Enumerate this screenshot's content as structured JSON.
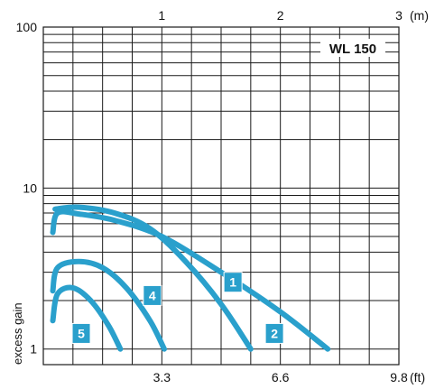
{
  "chart_data": {
    "type": "line",
    "model_label": "WL 150",
    "ylabel": "excess gain",
    "yscale": "log",
    "ylim": [
      0.8,
      100
    ],
    "y_ticks": [
      {
        "value": 1,
        "label": "1"
      },
      {
        "value": 10,
        "label": "10"
      },
      {
        "value": 100,
        "label": "100"
      }
    ],
    "x_bottom": {
      "unit_label": "(ft)",
      "xlim": [
        0,
        3
      ],
      "ticks": [
        {
          "value": 1,
          "label": "3.3"
        },
        {
          "value": 2,
          "label": "6.6"
        },
        {
          "value": 3,
          "label": "9.8"
        }
      ]
    },
    "x_top": {
      "unit_label": "(m)",
      "ticks": [
        {
          "value": 1,
          "label": "1"
        },
        {
          "value": 2,
          "label": "2"
        },
        {
          "value": 3,
          "label": "3"
        }
      ]
    },
    "series_color": "#2aa0cc",
    "series": [
      {
        "label": "1",
        "x": [
          0.08,
          0.12,
          0.3,
          0.6,
          1.0,
          1.5,
          2.0,
          2.4
        ],
        "y": [
          5.3,
          7.0,
          6.9,
          6.3,
          5.0,
          3.0,
          1.7,
          1.0
        ]
      },
      {
        "label": "2",
        "x": [
          0.1,
          0.3,
          0.6,
          0.9,
          1.2,
          1.5,
          1.75
        ],
        "y": [
          7.4,
          7.6,
          7.0,
          5.6,
          3.5,
          1.9,
          1.0
        ]
      },
      {
        "label": "4",
        "x": [
          0.08,
          0.12,
          0.3,
          0.5,
          0.7,
          0.9,
          1.02
        ],
        "y": [
          2.3,
          3.2,
          3.5,
          3.2,
          2.4,
          1.5,
          1.0
        ]
      },
      {
        "label": "5",
        "x": [
          0.08,
          0.12,
          0.25,
          0.4,
          0.55,
          0.65
        ],
        "y": [
          1.5,
          2.2,
          2.4,
          2.0,
          1.4,
          1.0
        ]
      }
    ],
    "grid": true
  }
}
